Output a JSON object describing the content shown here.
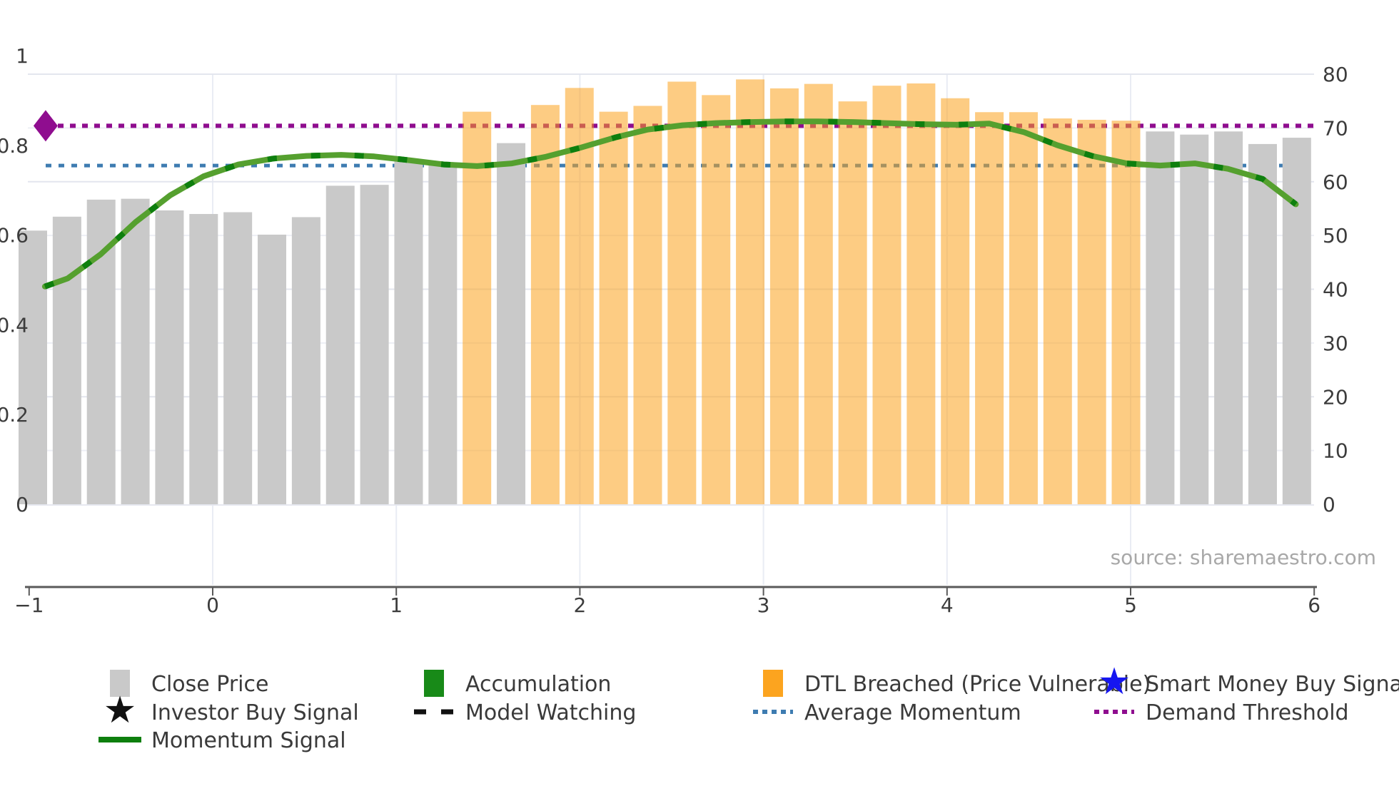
{
  "source_note": "source: sharemaestro.com",
  "colors": {
    "bar_gray": "#c9c9c9",
    "bar_breached_fill": "rgba(252,163,30,0.55)",
    "breached_legend": "#fca41f",
    "accumulation_green": "#188a18",
    "momentum_base": "#55a02f",
    "momentum_dash": "#0e7f0e",
    "avg_momentum_blue": "#3e7cb1",
    "demand_purple": "#8f0d8f",
    "smart_money_blue": "#1616f0",
    "investor_black": "#111111",
    "axis_line": "#5a5a5a",
    "grid_light": "#edeff5",
    "grid_top": "#e3e6ee"
  },
  "chart_data": {
    "type": "bar+line",
    "title": "",
    "xlabel": "",
    "ylabel_left": "",
    "ylabel_right": "",
    "x_axis": {
      "range": [
        -1,
        6
      ],
      "tick_labels": [
        "−1",
        "0",
        "1",
        "2",
        "3",
        "4",
        "5",
        "6"
      ],
      "tick_values": [
        -1,
        0,
        1,
        2,
        3,
        4,
        5,
        6
      ]
    },
    "y_left_axis": {
      "range": [
        0,
        1
      ],
      "tick_labels": [
        "0",
        "0.2",
        "0.4",
        "0.6",
        "0.8",
        "1"
      ],
      "tick_values": [
        0,
        0.2,
        0.4,
        0.6,
        0.8,
        1
      ]
    },
    "y_right_axis": {
      "range": [
        0,
        80
      ],
      "tick_labels": [
        "0",
        "10",
        "20",
        "30",
        "40",
        "50",
        "60",
        "70",
        "80"
      ],
      "tick_values": [
        0,
        10,
        20,
        30,
        40,
        50,
        60,
        70,
        80
      ]
    },
    "bars": {
      "series_name_normal": "Close Price",
      "series_name_breached": "DTL Breached (Price Vulnerable)",
      "x_first": -0.98,
      "x_step": 0.186,
      "values": [
        0.61,
        0.641,
        0.679,
        0.681,
        0.655,
        0.647,
        0.651,
        0.601,
        0.64,
        0.71,
        0.712,
        0.765,
        0.762,
        0.875,
        0.805,
        0.89,
        0.928,
        0.875,
        0.888,
        0.942,
        0.912,
        0.947,
        0.927,
        0.937,
        0.898,
        0.933,
        0.938,
        0.905,
        0.874,
        0.874,
        0.86,
        0.857,
        0.855,
        0.831,
        0.824,
        0.831,
        0.803,
        0.817
      ],
      "breached": [
        false,
        false,
        false,
        false,
        false,
        false,
        false,
        false,
        false,
        false,
        false,
        false,
        false,
        true,
        false,
        true,
        true,
        true,
        true,
        true,
        true,
        true,
        true,
        true,
        true,
        true,
        true,
        true,
        true,
        true,
        true,
        true,
        true,
        false,
        false,
        false,
        false,
        false
      ]
    },
    "momentum_line": {
      "name": "Momentum Signal",
      "axis": "right",
      "points": [
        [
          -0.914,
          40.5
        ],
        [
          -0.79,
          42.0
        ],
        [
          -0.61,
          46.5
        ],
        [
          -0.42,
          52.5
        ],
        [
          -0.23,
          57.5
        ],
        [
          -0.05,
          61.0
        ],
        [
          0.14,
          63.2
        ],
        [
          0.33,
          64.3
        ],
        [
          0.51,
          64.8
        ],
        [
          0.7,
          65.0
        ],
        [
          0.88,
          64.7
        ],
        [
          1.07,
          64.0
        ],
        [
          1.26,
          63.2
        ],
        [
          1.44,
          62.9
        ],
        [
          1.63,
          63.4
        ],
        [
          1.81,
          64.6
        ],
        [
          2.0,
          66.3
        ],
        [
          2.19,
          68.2
        ],
        [
          2.37,
          69.7
        ],
        [
          2.56,
          70.5
        ],
        [
          2.74,
          70.9
        ],
        [
          2.93,
          71.1
        ],
        [
          3.12,
          71.2
        ],
        [
          3.3,
          71.2
        ],
        [
          3.49,
          71.1
        ],
        [
          3.67,
          70.9
        ],
        [
          3.86,
          70.7
        ],
        [
          4.05,
          70.6
        ],
        [
          4.23,
          70.8
        ],
        [
          4.42,
          69.2
        ],
        [
          4.6,
          66.8
        ],
        [
          4.79,
          64.8
        ],
        [
          4.98,
          63.4
        ],
        [
          5.16,
          63.0
        ],
        [
          5.35,
          63.4
        ],
        [
          5.53,
          62.4
        ],
        [
          5.72,
          60.5
        ],
        [
          5.9,
          55.8
        ]
      ]
    },
    "reference_lines": {
      "average_momentum": {
        "label": "Average Momentum",
        "value": 63.0,
        "axis": "right"
      },
      "demand_threshold": {
        "label": "Demand Threshold",
        "value": 70.4,
        "axis": "right"
      }
    },
    "markers": {
      "demand_diamond": {
        "x": -0.91,
        "value": 70.4,
        "axis": "right",
        "shape": "diamond"
      }
    },
    "legend_position": "bottom",
    "grid": true
  },
  "legend": {
    "rows": [
      [
        {
          "swatch": "square",
          "color_key": "bar_gray",
          "label": "Close Price"
        },
        {
          "swatch": "square",
          "color_key": "accumulation_green",
          "label": "Accumulation"
        },
        {
          "swatch": "square",
          "color_key": "breached_legend",
          "label": "DTL Breached (Price Vulnerable)"
        },
        {
          "swatch": "star",
          "color_key": "smart_money_blue",
          "label": "Smart Money Buy Signal"
        }
      ],
      [
        {
          "swatch": "star",
          "color_key": "investor_black",
          "label": "Investor Buy Signal"
        },
        {
          "swatch": "dashes",
          "color_key": "investor_black",
          "label": "Model Watching"
        },
        {
          "swatch": "dots",
          "color_key": "avg_momentum_blue",
          "label": "Average Momentum"
        },
        {
          "swatch": "dots",
          "color_key": "demand_purple",
          "label": "Demand Threshold"
        }
      ],
      [
        {
          "swatch": "line",
          "color_key": "momentum_dash",
          "label": "Momentum Signal"
        }
      ]
    ]
  }
}
